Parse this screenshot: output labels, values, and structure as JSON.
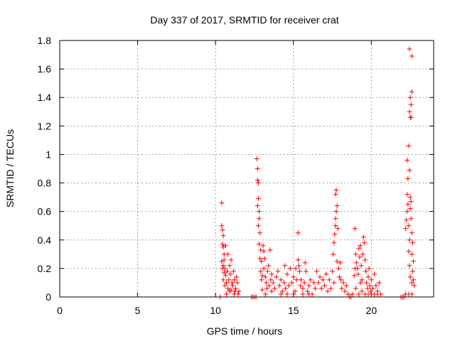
{
  "chart_data": {
    "type": "scatter",
    "title": "Day 337 of 2017, SRMTID for receiver crat",
    "xlabel": "GPS time / hours",
    "ylabel": "SRMTID / TECUs",
    "xlim": [
      0,
      24
    ],
    "ylim": [
      0,
      1.8
    ],
    "x_ticks": [
      0,
      5,
      10,
      15,
      20
    ],
    "y_ticks": [
      0,
      0.2,
      0.4,
      0.6,
      0.8,
      1,
      1.2,
      1.4,
      1.6,
      1.8
    ],
    "x_tick_labels": [
      "0",
      "5",
      "10",
      "15",
      "20"
    ],
    "y_tick_labels": [
      "0",
      "0.2",
      "0.4",
      "0.6",
      "0.8",
      "1",
      "1.2",
      "1.4",
      "1.6",
      "1.8"
    ],
    "grid": true,
    "marker": "+",
    "color": "#ff0000",
    "points": [
      [
        10.3,
        0.0
      ],
      [
        10.4,
        0.66
      ],
      [
        10.4,
        0.5
      ],
      [
        10.45,
        0.47
      ],
      [
        10.5,
        0.43
      ],
      [
        10.45,
        0.37
      ],
      [
        10.5,
        0.35
      ],
      [
        10.55,
        0.3
      ],
      [
        10.4,
        0.25
      ],
      [
        10.5,
        0.22
      ],
      [
        10.6,
        0.2
      ],
      [
        10.55,
        0.17
      ],
      [
        10.65,
        0.15
      ],
      [
        10.5,
        0.12
      ],
      [
        10.7,
        0.1
      ],
      [
        10.6,
        0.08
      ],
      [
        10.8,
        0.06
      ],
      [
        10.9,
        0.04
      ],
      [
        10.7,
        0.02
      ],
      [
        11.0,
        0.05
      ],
      [
        10.45,
        0.2
      ],
      [
        10.55,
        0.26
      ],
      [
        10.65,
        0.36
      ],
      [
        10.75,
        0.18
      ],
      [
        10.85,
        0.12
      ],
      [
        10.95,
        0.16
      ],
      [
        11.05,
        0.1
      ],
      [
        11.1,
        0.08
      ],
      [
        11.2,
        0.12
      ],
      [
        11.3,
        0.06
      ],
      [
        11.4,
        0.1
      ],
      [
        11.5,
        0.04
      ],
      [
        11.2,
        0.02
      ],
      [
        11.35,
        0.14
      ],
      [
        11.45,
        0.02
      ],
      [
        10.8,
        0.3
      ],
      [
        10.9,
        0.22
      ],
      [
        11.0,
        0.26
      ],
      [
        11.15,
        0.18
      ],
      [
        11.25,
        0.04
      ],
      [
        12.3,
        0.0
      ],
      [
        12.4,
        0.0
      ],
      [
        12.5,
        0.0
      ],
      [
        12.6,
        0.0
      ],
      [
        12.65,
        0.97
      ],
      [
        12.7,
        0.9
      ],
      [
        12.7,
        0.82
      ],
      [
        12.75,
        0.8
      ],
      [
        12.75,
        0.69
      ],
      [
        12.7,
        0.64
      ],
      [
        12.8,
        0.6
      ],
      [
        12.8,
        0.55
      ],
      [
        12.75,
        0.5
      ],
      [
        12.85,
        0.45
      ],
      [
        12.8,
        0.37
      ],
      [
        12.9,
        0.33
      ],
      [
        12.85,
        0.27
      ],
      [
        12.95,
        0.25
      ],
      [
        12.9,
        0.18
      ],
      [
        13.0,
        0.15
      ],
      [
        12.95,
        0.12
      ],
      [
        13.05,
        0.36
      ],
      [
        13.1,
        0.32
      ],
      [
        13.15,
        0.27
      ],
      [
        13.1,
        0.2
      ],
      [
        13.2,
        0.14
      ],
      [
        13.25,
        0.1
      ],
      [
        13.3,
        0.06
      ],
      [
        13.35,
        0.18
      ],
      [
        13.5,
        0.33
      ],
      [
        13.4,
        0.22
      ],
      [
        13.45,
        0.08
      ],
      [
        13.55,
        0.12
      ],
      [
        13.6,
        0.04
      ],
      [
        13.7,
        0.1
      ],
      [
        13.8,
        0.06
      ],
      [
        13.9,
        0.14
      ],
      [
        13.0,
        0.05
      ],
      [
        13.2,
        0.02
      ],
      [
        13.6,
        0.16
      ],
      [
        14.0,
        0.18
      ],
      [
        14.1,
        0.08
      ],
      [
        14.2,
        0.12
      ],
      [
        14.3,
        0.04
      ],
      [
        14.4,
        0.1
      ],
      [
        14.5,
        0.06
      ],
      [
        14.6,
        0.16
      ],
      [
        14.7,
        0.08
      ],
      [
        14.8,
        0.2
      ],
      [
        14.9,
        0.1
      ],
      [
        15.0,
        0.14
      ],
      [
        15.1,
        0.04
      ],
      [
        15.2,
        0.12
      ],
      [
        15.3,
        0.26
      ],
      [
        15.3,
        0.45
      ],
      [
        15.35,
        0.22
      ],
      [
        15.4,
        0.18
      ],
      [
        15.45,
        0.08
      ],
      [
        15.5,
        0.12
      ],
      [
        15.6,
        0.06
      ],
      [
        15.7,
        0.1
      ],
      [
        15.8,
        0.18
      ],
      [
        15.9,
        0.04
      ],
      [
        16.0,
        0.08
      ],
      [
        16.1,
        0.12
      ],
      [
        16.2,
        0.02
      ],
      [
        16.3,
        0.1
      ],
      [
        16.4,
        0.06
      ],
      [
        14.2,
        0.02
      ],
      [
        14.6,
        0.02
      ],
      [
        15.0,
        0.02
      ],
      [
        15.6,
        0.02
      ],
      [
        16.0,
        0.02
      ],
      [
        14.45,
        0.22
      ],
      [
        15.15,
        0.2
      ],
      [
        15.75,
        0.24
      ],
      [
        16.5,
        0.18
      ],
      [
        16.6,
        0.1
      ],
      [
        16.7,
        0.14
      ],
      [
        16.8,
        0.06
      ],
      [
        16.9,
        0.12
      ],
      [
        17.0,
        0.08
      ],
      [
        17.1,
        0.16
      ],
      [
        17.2,
        0.04
      ],
      [
        17.3,
        0.12
      ],
      [
        17.4,
        0.06
      ],
      [
        17.5,
        0.18
      ],
      [
        17.6,
        0.1
      ],
      [
        17.55,
        0.3
      ],
      [
        17.6,
        0.38
      ],
      [
        17.65,
        0.44
      ],
      [
        17.7,
        0.5
      ],
      [
        17.7,
        0.55
      ],
      [
        17.75,
        0.6
      ],
      [
        17.7,
        0.72
      ],
      [
        17.75,
        0.75
      ],
      [
        17.8,
        0.64
      ],
      [
        17.85,
        0.48
      ],
      [
        17.8,
        0.25
      ],
      [
        17.9,
        0.2
      ],
      [
        17.95,
        0.14
      ],
      [
        18.0,
        0.24
      ],
      [
        18.05,
        0.12
      ],
      [
        18.1,
        0.06
      ],
      [
        18.2,
        0.1
      ],
      [
        18.3,
        0.04
      ],
      [
        18.4,
        0.08
      ],
      [
        18.5,
        0.02
      ],
      [
        18.6,
        0.0
      ],
      [
        18.7,
        0.0
      ],
      [
        18.8,
        0.02
      ],
      [
        18.9,
        0.15
      ],
      [
        18.95,
        0.48
      ],
      [
        19.0,
        0.3
      ],
      [
        19.05,
        0.24
      ],
      [
        19.1,
        0.2
      ],
      [
        19.15,
        0.16
      ],
      [
        19.2,
        0.34
      ],
      [
        19.25,
        0.28
      ],
      [
        19.3,
        0.36
      ],
      [
        19.35,
        0.22
      ],
      [
        19.4,
        0.12
      ],
      [
        19.45,
        0.3
      ],
      [
        19.5,
        0.42
      ],
      [
        19.55,
        0.38
      ],
      [
        19.6,
        0.26
      ],
      [
        19.65,
        0.18
      ],
      [
        19.7,
        0.1
      ],
      [
        19.75,
        0.06
      ],
      [
        19.8,
        0.14
      ],
      [
        19.85,
        0.2
      ],
      [
        19.9,
        0.08
      ],
      [
        19.95,
        0.04
      ],
      [
        20.0,
        0.12
      ],
      [
        20.1,
        0.06
      ],
      [
        20.2,
        0.16
      ],
      [
        20.3,
        0.08
      ],
      [
        20.4,
        0.04
      ],
      [
        20.5,
        0.1
      ],
      [
        20.6,
        0.02
      ],
      [
        19.0,
        0.06
      ],
      [
        19.2,
        0.02
      ],
      [
        19.4,
        0.04
      ],
      [
        19.6,
        0.02
      ],
      [
        19.8,
        0.02
      ],
      [
        20.0,
        0.02
      ],
      [
        20.2,
        0.02
      ],
      [
        20.4,
        0.02
      ],
      [
        18.95,
        0.2
      ],
      [
        19.3,
        0.1
      ],
      [
        21.9,
        0.0
      ],
      [
        22.0,
        0.0
      ],
      [
        22.1,
        0.0
      ],
      [
        22.2,
        0.48
      ],
      [
        22.25,
        0.54
      ],
      [
        22.3,
        0.6
      ],
      [
        22.3,
        0.72
      ],
      [
        22.35,
        0.83
      ],
      [
        22.3,
        0.96
      ],
      [
        22.4,
        1.06
      ],
      [
        22.35,
        0.65
      ],
      [
        22.4,
        0.5
      ],
      [
        22.45,
        0.4
      ],
      [
        22.4,
        0.32
      ],
      [
        22.45,
        0.22
      ],
      [
        22.5,
        0.14
      ],
      [
        22.45,
        0.89
      ],
      [
        22.5,
        1.26
      ],
      [
        22.45,
        1.3
      ],
      [
        22.5,
        1.4
      ],
      [
        22.55,
        1.35
      ],
      [
        22.45,
        1.74
      ],
      [
        22.6,
        1.69
      ],
      [
        22.6,
        1.44
      ],
      [
        22.55,
        1.26
      ],
      [
        22.5,
        0.62
      ],
      [
        22.55,
        0.55
      ],
      [
        22.6,
        0.45
      ],
      [
        22.65,
        0.38
      ],
      [
        22.6,
        0.3
      ],
      [
        22.7,
        0.25
      ],
      [
        22.65,
        0.18
      ],
      [
        22.7,
        0.12
      ],
      [
        22.75,
        0.08
      ],
      [
        22.6,
        0.02
      ],
      [
        22.4,
        0.02
      ],
      [
        22.2,
        0.02
      ],
      [
        22.5,
        0.7
      ],
      [
        22.55,
        0.67
      ],
      [
        22.6,
        0.1
      ]
    ]
  }
}
